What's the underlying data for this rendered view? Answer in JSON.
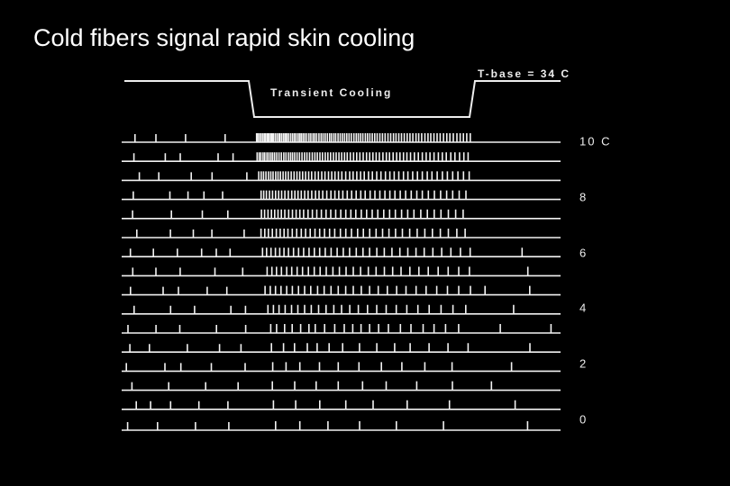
{
  "title": "Cold fibers signal rapid skin cooling",
  "stimulus": {
    "baseline_label": "T-base = 34 C",
    "step_label": "Transient Cooling"
  },
  "trace_labels": [
    "10 C",
    "8",
    "6",
    "4",
    "2",
    "0"
  ]
}
